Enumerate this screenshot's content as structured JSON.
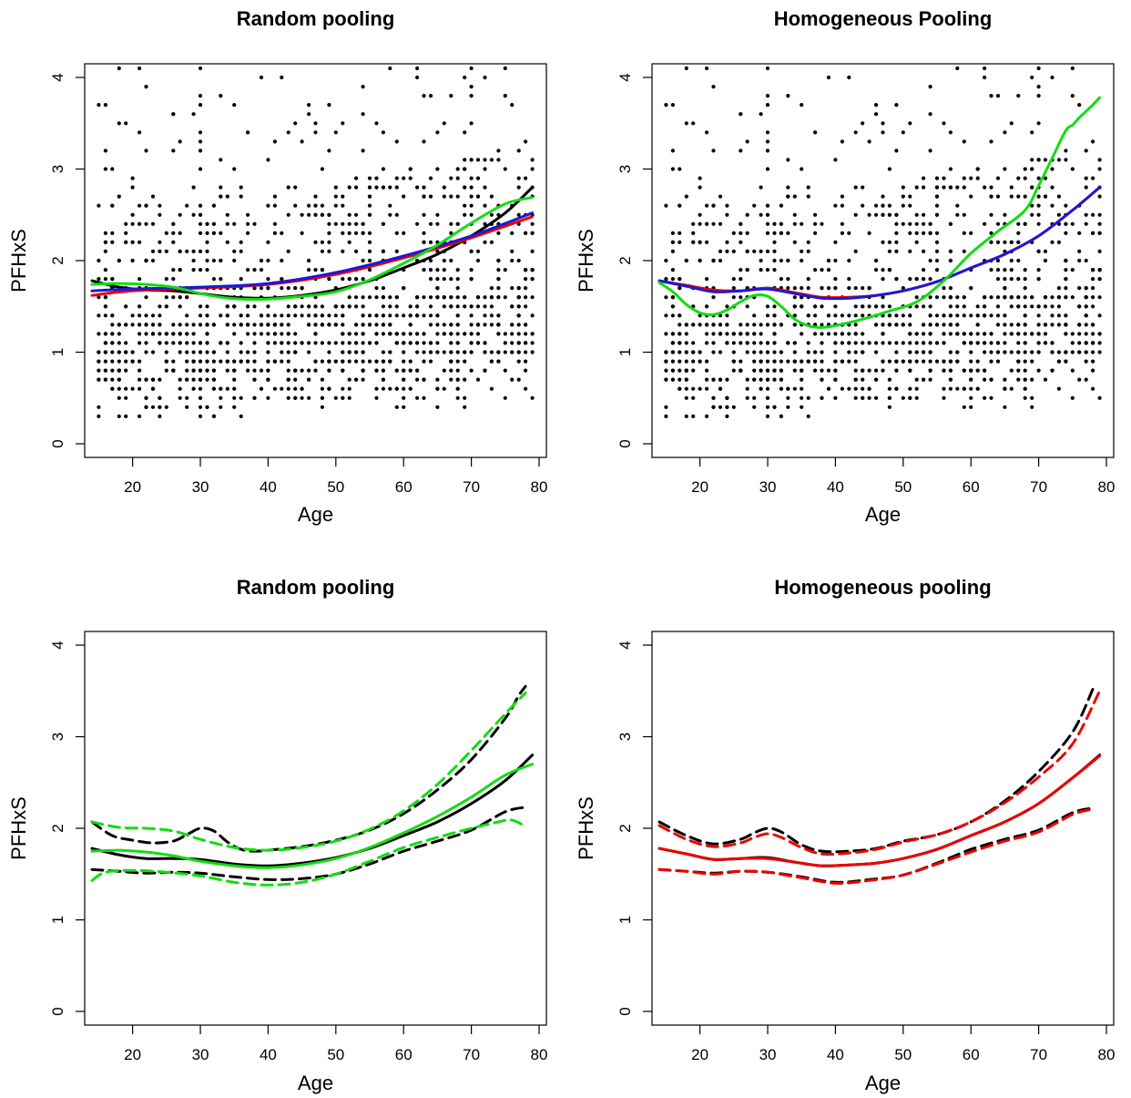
{
  "colors": {
    "black": "#000000",
    "red": "#ee0000",
    "blue": "#1a1ad6",
    "green": "#11dd11"
  },
  "chart_data": [
    {
      "type": "scatter",
      "title": "Random pooling",
      "xlabel": "Age",
      "ylabel": "PFHxS",
      "xlim": [
        14,
        80
      ],
      "ylim": [
        0,
        4
      ],
      "xticks": [
        20,
        30,
        40,
        50,
        60,
        70,
        80
      ],
      "yticks": [
        0,
        1,
        2,
        3,
        4
      ],
      "grid": false,
      "scatter": {
        "color": "black",
        "n_points": 1400,
        "note": "dense points, age 15-79, PFHxS mostly 0.1-2.5, sparser up to 4+"
      },
      "series": [
        {
          "color": "black",
          "style": "solid",
          "x": [
            14,
            18,
            22,
            26,
            30,
            35,
            40,
            45,
            50,
            55,
            60,
            65,
            70,
            75,
            79
          ],
          "y": [
            1.78,
            1.71,
            1.68,
            1.67,
            1.64,
            1.6,
            1.59,
            1.62,
            1.68,
            1.78,
            1.92,
            2.07,
            2.27,
            2.52,
            2.8
          ]
        },
        {
          "color": "red",
          "style": "solid",
          "x": [
            14,
            20,
            30,
            40,
            50,
            60,
            70,
            79
          ],
          "y": [
            1.62,
            1.67,
            1.7,
            1.74,
            1.85,
            2.03,
            2.25,
            2.48
          ]
        },
        {
          "color": "blue",
          "style": "solid",
          "x": [
            14,
            20,
            30,
            40,
            50,
            60,
            70,
            79
          ],
          "y": [
            1.67,
            1.69,
            1.71,
            1.75,
            1.87,
            2.05,
            2.27,
            2.52
          ]
        },
        {
          "color": "green",
          "style": "solid",
          "x": [
            14,
            18,
            22,
            26,
            30,
            33,
            36,
            40,
            45,
            50,
            55,
            60,
            65,
            70,
            75,
            79
          ],
          "y": [
            1.74,
            1.75,
            1.74,
            1.71,
            1.64,
            1.6,
            1.58,
            1.58,
            1.61,
            1.66,
            1.79,
            1.97,
            2.17,
            2.41,
            2.62,
            2.69
          ]
        }
      ]
    },
    {
      "type": "scatter",
      "title": "Homogeneous Pooling",
      "xlabel": "Age",
      "ylabel": "PFHxS",
      "xlim": [
        14,
        80
      ],
      "ylim": [
        0,
        4
      ],
      "xticks": [
        20,
        30,
        40,
        50,
        60,
        70,
        80
      ],
      "yticks": [
        0,
        1,
        2,
        3,
        4
      ],
      "grid": false,
      "scatter": {
        "color": "black",
        "n_points": 1400,
        "note": "dense points, age 15-79, PFHxS mostly 0.1-2.5, sparser up to 4+"
      },
      "series": [
        {
          "color": "red",
          "style": "solid",
          "x": [
            14,
            18,
            22,
            26,
            30,
            34,
            38,
            42,
            46,
            50,
            55,
            60,
            65,
            70,
            75,
            79
          ],
          "y": [
            1.78,
            1.73,
            1.68,
            1.67,
            1.7,
            1.65,
            1.6,
            1.6,
            1.62,
            1.67,
            1.77,
            1.92,
            2.07,
            2.27,
            2.55,
            2.8
          ]
        },
        {
          "color": "blue",
          "style": "solid",
          "x": [
            14,
            18,
            22,
            26,
            30,
            34,
            38,
            42,
            46,
            50,
            55,
            60,
            65,
            70,
            75,
            79
          ],
          "y": [
            1.78,
            1.72,
            1.66,
            1.67,
            1.69,
            1.64,
            1.59,
            1.59,
            1.62,
            1.67,
            1.77,
            1.92,
            2.07,
            2.27,
            2.55,
            2.8
          ]
        },
        {
          "color": "green",
          "style": "solid",
          "x": [
            14,
            16,
            18,
            20,
            22,
            24,
            26,
            28,
            30,
            32,
            34,
            36,
            38,
            40,
            44,
            48,
            52,
            56,
            60,
            64,
            68,
            70,
            72,
            74,
            75,
            76,
            78,
            79
          ],
          "y": [
            1.76,
            1.66,
            1.52,
            1.43,
            1.41,
            1.46,
            1.55,
            1.62,
            1.61,
            1.5,
            1.36,
            1.29,
            1.27,
            1.29,
            1.36,
            1.45,
            1.55,
            1.78,
            2.08,
            2.32,
            2.55,
            2.82,
            3.12,
            3.42,
            3.48,
            3.56,
            3.7,
            3.78
          ]
        }
      ]
    },
    {
      "type": "line",
      "title": "Random pooling",
      "xlabel": "Age",
      "ylabel": "PFHxS",
      "xlim": [
        14,
        80
      ],
      "ylim": [
        0,
        4
      ],
      "xticks": [
        20,
        30,
        40,
        50,
        60,
        70,
        80
      ],
      "yticks": [
        0,
        1,
        2,
        3,
        4
      ],
      "grid": false,
      "series": [
        {
          "color": "black",
          "style": "solid",
          "x": [
            14,
            18,
            22,
            26,
            30,
            35,
            40,
            45,
            50,
            55,
            60,
            65,
            70,
            75,
            79
          ],
          "y": [
            1.78,
            1.71,
            1.67,
            1.67,
            1.66,
            1.61,
            1.59,
            1.62,
            1.68,
            1.78,
            1.92,
            2.07,
            2.27,
            2.52,
            2.8
          ]
        },
        {
          "color": "black",
          "style": "dashed",
          "x": [
            14,
            17,
            20,
            23,
            26,
            28,
            30,
            32,
            34,
            36,
            38,
            40,
            45,
            50,
            55,
            60,
            65,
            70,
            75,
            77,
            78
          ],
          "y": [
            2.07,
            1.92,
            1.87,
            1.84,
            1.86,
            1.93,
            2.0,
            1.97,
            1.85,
            1.77,
            1.75,
            1.76,
            1.8,
            1.87,
            1.98,
            2.16,
            2.42,
            2.75,
            3.2,
            3.45,
            3.55
          ]
        },
        {
          "color": "black",
          "style": "dashed",
          "x": [
            14,
            18,
            22,
            26,
            30,
            35,
            40,
            45,
            50,
            55,
            60,
            65,
            70,
            75,
            78
          ],
          "y": [
            1.55,
            1.53,
            1.51,
            1.52,
            1.51,
            1.47,
            1.44,
            1.45,
            1.5,
            1.61,
            1.75,
            1.86,
            1.98,
            2.18,
            2.23
          ]
        },
        {
          "color": "green",
          "style": "solid",
          "x": [
            14,
            18,
            22,
            26,
            30,
            35,
            40,
            45,
            50,
            55,
            60,
            65,
            70,
            75,
            79
          ],
          "y": [
            1.75,
            1.76,
            1.74,
            1.7,
            1.64,
            1.59,
            1.57,
            1.6,
            1.67,
            1.79,
            1.95,
            2.13,
            2.34,
            2.58,
            2.7
          ]
        },
        {
          "color": "green",
          "style": "dashed",
          "x": [
            14,
            18,
            22,
            26,
            30,
            35,
            40,
            45,
            50,
            55,
            60,
            65,
            70,
            75,
            78
          ],
          "y": [
            2.07,
            2.01,
            2.0,
            1.97,
            1.88,
            1.79,
            1.76,
            1.79,
            1.86,
            1.99,
            2.19,
            2.48,
            2.85,
            3.25,
            3.48
          ]
        },
        {
          "color": "green",
          "style": "dashed",
          "x": [
            14,
            16,
            20,
            25,
            30,
            35,
            40,
            45,
            50,
            55,
            60,
            65,
            70,
            74,
            76,
            78
          ],
          "y": [
            1.43,
            1.52,
            1.54,
            1.52,
            1.48,
            1.41,
            1.38,
            1.41,
            1.5,
            1.64,
            1.79,
            1.9,
            2.0,
            2.07,
            2.09,
            2.02
          ]
        }
      ]
    },
    {
      "type": "line",
      "title": "Homogeneous pooling",
      "xlabel": "Age",
      "ylabel": "PFHxS",
      "xlim": [
        14,
        80
      ],
      "ylim": [
        0,
        4
      ],
      "xticks": [
        20,
        30,
        40,
        50,
        60,
        70,
        80
      ],
      "yticks": [
        0,
        1,
        2,
        3,
        4
      ],
      "grid": false,
      "series": [
        {
          "color": "black",
          "style": "solid",
          "x": [
            14,
            18,
            22,
            26,
            30,
            34,
            38,
            42,
            46,
            50,
            55,
            60,
            65,
            70,
            75,
            79
          ],
          "y": [
            1.78,
            1.72,
            1.66,
            1.67,
            1.68,
            1.63,
            1.59,
            1.6,
            1.62,
            1.67,
            1.77,
            1.92,
            2.07,
            2.27,
            2.55,
            2.8
          ]
        },
        {
          "color": "red",
          "style": "solid",
          "x": [
            14,
            18,
            22,
            26,
            30,
            34,
            38,
            42,
            46,
            50,
            55,
            60,
            65,
            70,
            75,
            79
          ],
          "y": [
            1.78,
            1.72,
            1.66,
            1.67,
            1.67,
            1.63,
            1.59,
            1.6,
            1.62,
            1.67,
            1.77,
            1.92,
            2.07,
            2.27,
            2.55,
            2.79
          ]
        },
        {
          "color": "black",
          "style": "dashed",
          "x": [
            14,
            18,
            22,
            26,
            28,
            30,
            32,
            35,
            38,
            42,
            46,
            50,
            55,
            60,
            65,
            70,
            75,
            78
          ],
          "y": [
            2.07,
            1.92,
            1.83,
            1.88,
            1.95,
            2.0,
            1.96,
            1.82,
            1.75,
            1.75,
            1.78,
            1.86,
            1.93,
            2.07,
            2.3,
            2.62,
            3.05,
            3.52
          ]
        },
        {
          "color": "red",
          "style": "dashed",
          "x": [
            14,
            18,
            22,
            26,
            28,
            30,
            32,
            35,
            38,
            42,
            46,
            50,
            55,
            60,
            65,
            70,
            75,
            79
          ],
          "y": [
            2.03,
            1.88,
            1.8,
            1.84,
            1.9,
            1.94,
            1.9,
            1.79,
            1.72,
            1.73,
            1.77,
            1.85,
            1.93,
            2.07,
            2.28,
            2.56,
            2.92,
            3.5
          ]
        },
        {
          "color": "black",
          "style": "dashed",
          "x": [
            14,
            18,
            22,
            26,
            30,
            35,
            40,
            45,
            50,
            55,
            60,
            65,
            70,
            75,
            78
          ],
          "y": [
            1.55,
            1.53,
            1.51,
            1.53,
            1.52,
            1.47,
            1.41,
            1.44,
            1.49,
            1.62,
            1.77,
            1.88,
            1.98,
            2.17,
            2.22
          ]
        },
        {
          "color": "red",
          "style": "dashed",
          "x": [
            14,
            18,
            22,
            26,
            30,
            35,
            40,
            45,
            50,
            55,
            60,
            65,
            70,
            75,
            78
          ],
          "y": [
            1.55,
            1.53,
            1.5,
            1.53,
            1.52,
            1.46,
            1.4,
            1.43,
            1.49,
            1.61,
            1.74,
            1.86,
            1.96,
            2.15,
            2.21
          ]
        }
      ]
    }
  ]
}
